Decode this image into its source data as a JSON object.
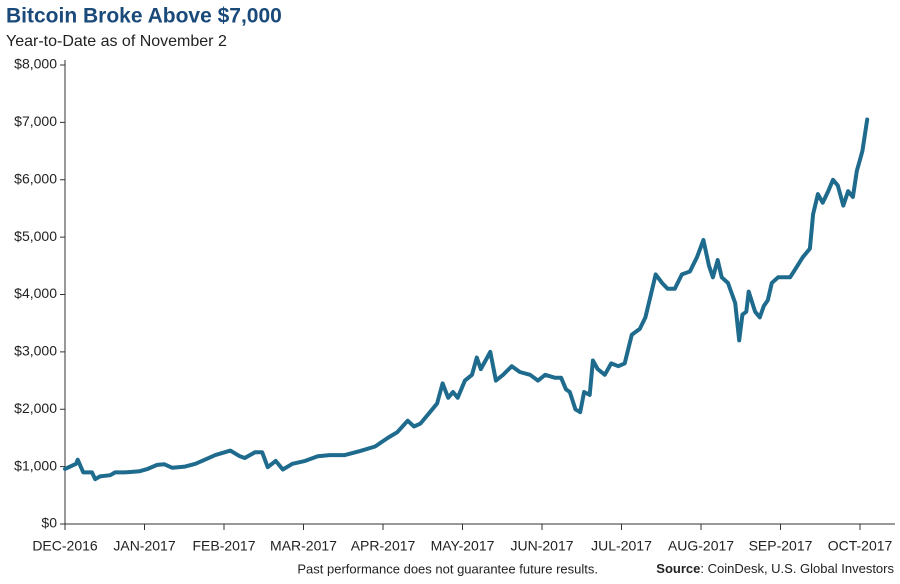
{
  "chart_data": {
    "type": "line",
    "title": "Bitcoin Broke Above $7,000",
    "subtitle": "Year-to-Date as of November 2",
    "footnote": "Past performance does not guarantee future results.",
    "source_label": "Source",
    "source_text": ": CoinDesk, U.S. Global Investors",
    "x": [
      0,
      0.14,
      0.16,
      0.23,
      0.34,
      0.38,
      0.44,
      0.57,
      0.63,
      0.75,
      0.94,
      1.04,
      1.16,
      1.25,
      1.35,
      1.51,
      1.64,
      1.76,
      1.89,
      2.08,
      2.2,
      2.26,
      2.39,
      2.48,
      2.55,
      2.65,
      2.74,
      2.86,
      3.02,
      3.18,
      3.33,
      3.52,
      3.71,
      3.9,
      4.06,
      4.18,
      4.31,
      4.39,
      4.47,
      4.62,
      4.68,
      4.75,
      4.82,
      4.88,
      4.94,
      5.03,
      5.12,
      5.18,
      5.23,
      5.35,
      5.42,
      5.51,
      5.62,
      5.72,
      5.85,
      5.95,
      6.04,
      6.16,
      6.24,
      6.3,
      6.35,
      6.42,
      6.48,
      6.53,
      6.6,
      6.64,
      6.7,
      6.79,
      6.87,
      6.96,
      7.04,
      7.13,
      7.23,
      7.3,
      7.37,
      7.43,
      7.51,
      7.58,
      7.67,
      7.76,
      7.86,
      7.95,
      8.03,
      8.1,
      8.15,
      8.21,
      8.26,
      8.34,
      8.43,
      8.48,
      8.52,
      8.57,
      8.6,
      8.68,
      8.74,
      8.79,
      8.84,
      8.89,
      8.97,
      9.03,
      9.12,
      9.19,
      9.28,
      9.37,
      9.41,
      9.47,
      9.53,
      9.6,
      9.66,
      9.72,
      9.79,
      9.85,
      9.91,
      9.96,
      10.03,
      10.09
    ],
    "series": [
      {
        "name": "Bitcoin",
        "color": "#1f6b8e",
        "values": [
          960,
          1050,
          1120,
          900,
          900,
          780,
          830,
          850,
          900,
          900,
          920,
          960,
          1030,
          1040,
          980,
          1000,
          1050,
          1120,
          1200,
          1280,
          1180,
          1150,
          1250,
          1250,
          990,
          1100,
          950,
          1050,
          1100,
          1180,
          1200,
          1200,
          1270,
          1350,
          1500,
          1600,
          1800,
          1700,
          1750,
          2000,
          2100,
          2450,
          2200,
          2300,
          2200,
          2500,
          2600,
          2900,
          2700,
          3000,
          2500,
          2600,
          2750,
          2650,
          2600,
          2500,
          2600,
          2550,
          2550,
          2350,
          2300,
          2000,
          1950,
          2300,
          2250,
          2850,
          2700,
          2600,
          2800,
          2750,
          2800,
          3300,
          3400,
          3600,
          4000,
          4350,
          4200,
          4100,
          4100,
          4350,
          4400,
          4650,
          4950,
          4500,
          4300,
          4600,
          4300,
          4200,
          3850,
          3200,
          3650,
          3700,
          4050,
          3700,
          3600,
          3800,
          3900,
          4200,
          4300,
          4300,
          4300,
          4450,
          4650,
          4800,
          5400,
          5750,
          5600,
          5800,
          6000,
          5900,
          5550,
          5800,
          5700,
          6150,
          6500,
          7050
        ]
      }
    ],
    "xlim": [
      0,
      10.44
    ],
    "xticks": [
      {
        "value": 0,
        "label": "DEC-2016"
      },
      {
        "value": 1,
        "label": "JAN-2017"
      },
      {
        "value": 2,
        "label": "FEB-2017"
      },
      {
        "value": 3,
        "label": "MAR-2017"
      },
      {
        "value": 4,
        "label": "APR-2017"
      },
      {
        "value": 5,
        "label": "MAY-2017"
      },
      {
        "value": 6,
        "label": "JUN-2017"
      },
      {
        "value": 7,
        "label": "JUL-2017"
      },
      {
        "value": 8,
        "label": "AUG-2017"
      },
      {
        "value": 9,
        "label": "SEP-2017"
      },
      {
        "value": 10,
        "label": "OCT-2017"
      }
    ],
    "ylim": [
      0,
      8000
    ],
    "yticks": [
      {
        "value": 0,
        "label": "$0"
      },
      {
        "value": 1000,
        "label": "$1,000"
      },
      {
        "value": 2000,
        "label": "$2,000"
      },
      {
        "value": 3000,
        "label": "$3,000"
      },
      {
        "value": 4000,
        "label": "$4,000"
      },
      {
        "value": 5000,
        "label": "$5,000"
      },
      {
        "value": 6000,
        "label": "$6,000"
      },
      {
        "value": 7000,
        "label": "$7,000"
      },
      {
        "value": 8000,
        "label": "$8,000"
      }
    ],
    "grid": false
  }
}
